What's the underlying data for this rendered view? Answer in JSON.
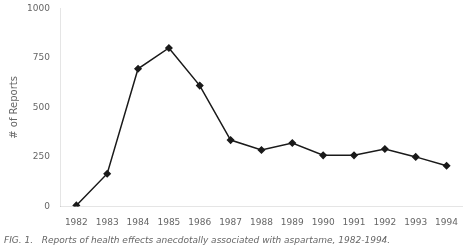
{
  "chart_data": {
    "type": "line",
    "x": [
      1982,
      1983,
      1984,
      1985,
      1986,
      1987,
      1988,
      1989,
      1990,
      1991,
      1992,
      1993,
      1994
    ],
    "values": [
      5,
      165,
      695,
      800,
      610,
      335,
      285,
      320,
      258,
      258,
      290,
      250,
      205
    ],
    "ylabel": "# of Reports",
    "caption": "FIG. 1.   Reports of health effects anecdotally associated with aspartame, 1982-1994.",
    "color": "#1a1a1a",
    "marker": "diamond",
    "xlim": [
      1981.5,
      1994.5
    ],
    "xticks": [
      1982,
      1983,
      1984,
      1985,
      1986,
      1987,
      1988,
      1989,
      1990,
      1991,
      1992,
      1993,
      1994
    ],
    "ylim": [
      0,
      1000
    ],
    "yticks": [
      0,
      250,
      500,
      750,
      1000
    ],
    "grid": false
  }
}
